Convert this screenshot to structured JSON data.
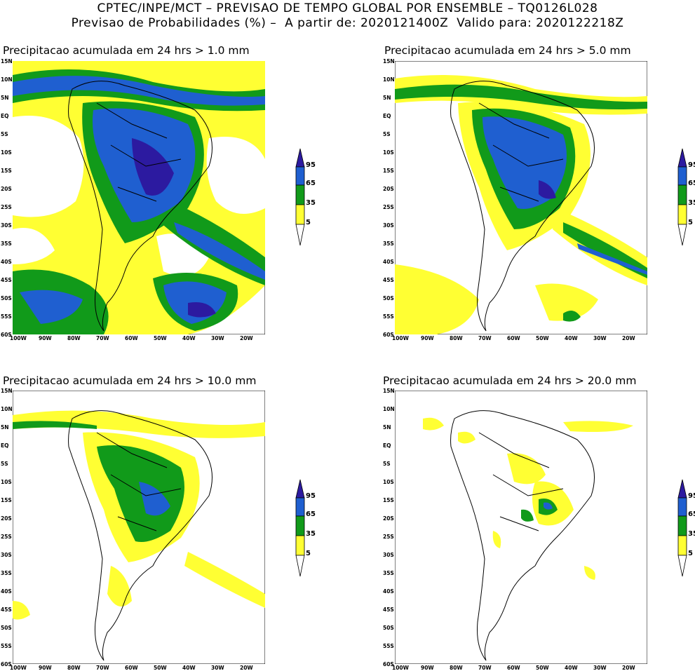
{
  "header": {
    "line1": "CPTEC/INPE/MCT – PREVISAO DE TEMPO GLOBAL POR ENSEMBLE – TQ0126L028",
    "line2": "Previsao de Probabilidades (%) –  A partir de: 2020121400Z  Valido para: 2020122218Z"
  },
  "panels": [
    {
      "title": "Precipitacao acumulada em 24 hrs > 1.0 mm",
      "coverage": "high"
    },
    {
      "title": "Precipitacao acumulada em 24 hrs > 5.0 mm",
      "coverage": "medium"
    },
    {
      "title": "Precipitacao acumulada em 24 hrs > 10.0 mm",
      "coverage": "low"
    },
    {
      "title": "Precipitacao acumulada em 24 hrs > 20.0 mm",
      "coverage": "minimal"
    }
  ],
  "axes": {
    "lat_labels": [
      "15N",
      "10N",
      "5N",
      "EQ",
      "5S",
      "10S",
      "15S",
      "20S",
      "25S",
      "30S",
      "35S",
      "40S",
      "45S",
      "50S",
      "55S",
      "60S"
    ],
    "lon_labels": [
      "100W",
      "90W",
      "80W",
      "70W",
      "60W",
      "50W",
      "40W",
      "30W",
      "20W"
    ]
  },
  "colorbar": {
    "levels": [
      "95",
      "65",
      "35",
      "5"
    ],
    "colors": {
      "c95": "#2c1aa0",
      "c65": "#1f5fd0",
      "c35": "#119a1a",
      "c5": "#ffff33",
      "ocean": "#ffffff"
    }
  }
}
